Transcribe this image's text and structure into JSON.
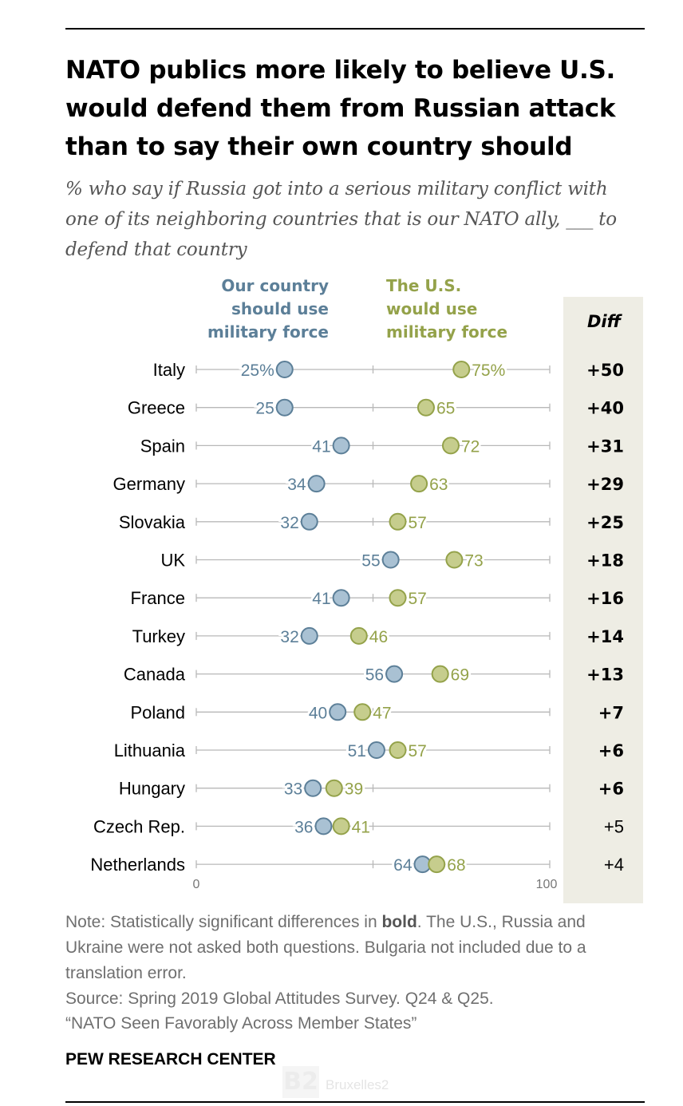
{
  "title": "NATO publics more likely to believe U.S. would defend them from Russian attack than to say their own country should",
  "subtitle": "% who say if Russia got into a serious military conflict with one of its neighboring countries that is our NATO ally, ___ to defend that country",
  "legend": {
    "own_country": [
      "Our country",
      "should use",
      "military force"
    ],
    "us": [
      "The U.S.",
      "would use",
      "military force"
    ],
    "diff_header": "Diff"
  },
  "colors": {
    "own_country": "#5c7f98",
    "own_country_fill": "#a9c1d3",
    "us": "#94a24a",
    "us_fill": "#c6cd8d",
    "diff_panel": "#eeede4",
    "axis": "#b8b8b8"
  },
  "chart_data": {
    "type": "dot",
    "title": "NATO publics more likely to believe U.S. would defend them from Russian attack than to say their own country should",
    "xlim": [
      0,
      100
    ],
    "x_ticks": [
      "0",
      "100"
    ],
    "categories": [
      "Italy",
      "Greece",
      "Spain",
      "Germany",
      "Slovakia",
      "UK",
      "France",
      "Turkey",
      "Canada",
      "Poland",
      "Lithuania",
      "Hungary",
      "Czech Rep.",
      "Netherlands"
    ],
    "series": [
      {
        "name": "Our country should use military force",
        "values": [
          25,
          25,
          41,
          34,
          32,
          55,
          41,
          32,
          56,
          40,
          51,
          33,
          36,
          64
        ]
      },
      {
        "name": "The U.S. would use military force",
        "values": [
          75,
          65,
          72,
          63,
          57,
          73,
          57,
          46,
          69,
          47,
          57,
          39,
          41,
          68
        ]
      }
    ],
    "diff": [
      "+50",
      "+40",
      "+31",
      "+29",
      "+25",
      "+18",
      "+16",
      "+14",
      "+13",
      "+7",
      "+6",
      "+6",
      "+5",
      "+4"
    ],
    "diff_significant": [
      true,
      true,
      true,
      true,
      true,
      true,
      true,
      true,
      true,
      true,
      true,
      true,
      false,
      false
    ],
    "first_row_suffix": "%"
  },
  "note": {
    "prefix": "Note: Statistically significant differences in ",
    "bold": "bold",
    "suffix": ". The U.S., Russia and Ukraine were not asked both questions. Bulgaria not included due to a translation error."
  },
  "source_line1": "Source: Spring 2019 Global Attitudes Survey. Q24 & Q25.",
  "source_line2": "“NATO Seen Favorably Across Member States”",
  "organization": "PEW RESEARCH CENTER",
  "watermark": {
    "mark": "B2",
    "brand": "Bruxelles2"
  }
}
